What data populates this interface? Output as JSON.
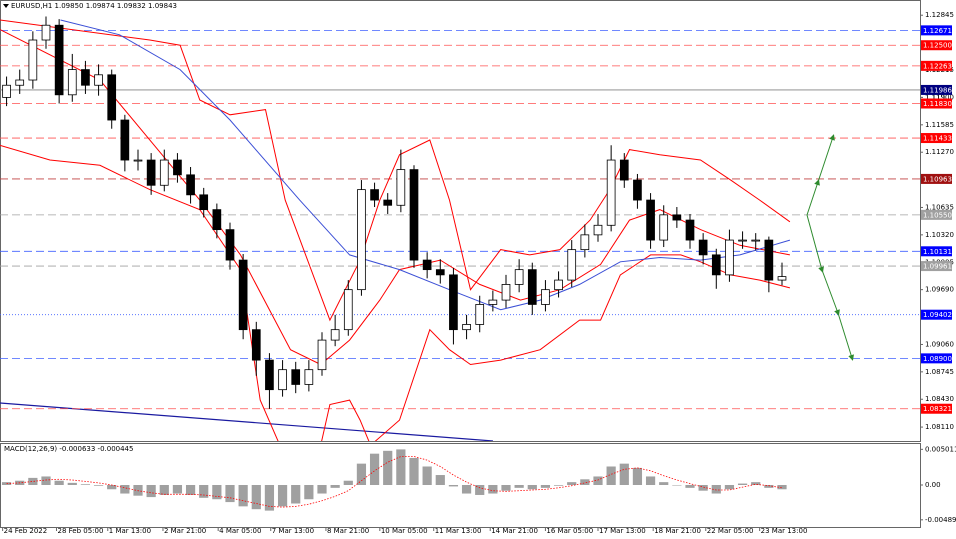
{
  "chart_data": [
    {
      "type": "candlestick",
      "title": "EURUSD,H1 1.09850 1.09874 1.09832 1.09843",
      "xlim": [
        0,
        70
      ],
      "ylim": [
        1.0795,
        1.1302
      ],
      "xticks": [
        {
          "value": 0.2,
          "label": "24 Feb 2022"
        },
        {
          "value": 4.3,
          "label": "28 Feb 05:00"
        },
        {
          "value": 8.2,
          "label": "1 Mar 13:00"
        },
        {
          "value": 12.4,
          "label": "2 Mar 21:00"
        },
        {
          "value": 16.6,
          "label": "4 Mar 05:00"
        },
        {
          "value": 20.6,
          "label": "7 Mar 13:00"
        },
        {
          "value": 24.8,
          "label": "8 Mar 21:00"
        },
        {
          "value": 28.9,
          "label": "10 Mar 05:00"
        },
        {
          "value": 33.0,
          "label": "11 Mar 13:00"
        },
        {
          "value": 37.3,
          "label": "14 Mar 21:00"
        },
        {
          "value": 41.5,
          "label": "16 Mar 05:00"
        },
        {
          "value": 45.5,
          "label": "17 Mar 13:00"
        },
        {
          "value": 49.7,
          "label": "18 Mar 21:00"
        },
        {
          "value": 53.7,
          "label": "22 Mar 05:00"
        },
        {
          "value": 57.8,
          "label": "23 Mar 13:00"
        }
      ],
      "yticks": [
        1.12845,
        1.12215,
        1.119,
        {
          "value": 1.119,
          "label": "1.11900"
        },
        1.11585,
        {
          "value": 1.1127,
          "label": "1.11270"
        },
        1.10635,
        {
          "value": 1.1032,
          "label": "1.10320"
        },
        1.10005,
        {
          "value": 1.0969,
          "label": "1.09690"
        },
        {
          "value": 1.0906,
          "label": "1.09060"
        },
        1.08745,
        {
          "value": 1.0843,
          "label": "1.08430"
        },
        {
          "value": 1.0811,
          "label": "1.08110"
        }
      ],
      "color_up": "#ffffff",
      "color_down": "#000000",
      "open": [
        1.119,
        1.1204,
        1.121,
        1.1256,
        1.1273,
        1.1193,
        1.1222,
        1.1204,
        1.1216,
        1.1164,
        1.1118,
        1.1118,
        1.1089,
        1.1118,
        1.1101,
        1.1078,
        1.1061,
        1.1038,
        1.1003,
        1.0923,
        1.0888,
        1.0854,
        1.0877,
        1.086,
        1.0877,
        1.0911,
        1.0923,
        1.0969,
        1.1084,
        1.1072,
        1.1066,
        1.1107,
        1.1003,
        1.0992,
        1.0986,
        1.0923,
        1.0929,
        1.0952,
        1.0957,
        1.0975,
        1.0992,
        1.0952,
        1.0969,
        1.098,
        1.1015,
        1.1032,
        1.1043,
        1.1118,
        1.1095,
        1.1072,
        1.1026,
        1.1055,
        1.1049,
        1.1026,
        1.1009,
        1.0986,
        1.1026,
        1.1026,
        1.1026,
        1.098
      ],
      "high": [
        1.1214,
        1.1222,
        1.1266,
        1.1283,
        1.128,
        1.124,
        1.1232,
        1.1228,
        1.1222,
        1.117,
        1.113,
        1.1126,
        1.113,
        1.1126,
        1.111,
        1.1086,
        1.1068,
        1.1046,
        1.101,
        1.0932,
        1.0896,
        1.0888,
        1.0886,
        1.0888,
        1.092,
        1.094,
        1.098,
        1.1095,
        1.1092,
        1.108,
        1.113,
        1.1112,
        1.1012,
        1.1004,
        1.0994,
        1.094,
        1.0962,
        1.0968,
        1.0986,
        1.1004,
        1.1,
        1.098,
        1.099,
        1.1026,
        1.1044,
        1.1056,
        1.1135,
        1.1126,
        1.1102,
        1.108,
        1.1066,
        1.1064,
        1.1056,
        1.1034,
        1.1016,
        1.1038,
        1.1036,
        1.1034,
        1.103,
        1.1
      ],
      "low": [
        1.118,
        1.1194,
        1.12,
        1.1246,
        1.1183,
        1.1185,
        1.1194,
        1.1192,
        1.1154,
        1.1105,
        1.1106,
        1.1078,
        1.1082,
        1.1092,
        1.1068,
        1.1052,
        1.1028,
        1.0992,
        1.0912,
        1.087,
        1.0832,
        1.0846,
        1.085,
        1.0852,
        1.087,
        1.0904,
        1.0916,
        1.0962,
        1.1064,
        1.1056,
        1.1058,
        1.0994,
        1.0982,
        1.0976,
        1.0906,
        1.0912,
        1.092,
        1.0944,
        1.0948,
        1.0966,
        1.094,
        1.0944,
        1.096,
        1.0972,
        1.1006,
        1.1024,
        1.1036,
        1.1086,
        1.1062,
        1.1016,
        1.1018,
        1.104,
        1.1016,
        1.0998,
        1.097,
        1.0978,
        1.1016,
        1.1014,
        1.0966,
        1.0974
      ],
      "close": [
        1.1204,
        1.121,
        1.1256,
        1.1273,
        1.1193,
        1.1222,
        1.1204,
        1.1216,
        1.1164,
        1.1118,
        1.1118,
        1.1089,
        1.1118,
        1.1101,
        1.1078,
        1.1061,
        1.1038,
        1.1003,
        1.0923,
        1.0888,
        1.0854,
        1.0877,
        1.086,
        1.0877,
        1.0911,
        1.0923,
        1.0969,
        1.1084,
        1.1072,
        1.1066,
        1.1107,
        1.1003,
        1.0992,
        1.0986,
        1.0923,
        1.0929,
        1.0952,
        1.0957,
        1.0975,
        1.0992,
        1.0952,
        1.0969,
        1.098,
        1.1015,
        1.1032,
        1.1043,
        1.1118,
        1.1095,
        1.1072,
        1.1026,
        1.1055,
        1.1049,
        1.1026,
        1.1009,
        1.0986,
        1.1026,
        1.1026,
        1.1026,
        1.098,
        1.0984
      ],
      "overlays": [
        {
          "color": "#ff0000",
          "x": [
            0,
            11.4,
            13.7,
            15.2,
            17.5,
            20.2,
            21.7,
            25.1,
            27.4,
            28.9,
            30.4,
            32.7,
            34.2,
            35.8,
            38.1,
            40.3,
            42.6,
            44.9,
            46.4,
            47.9,
            50.2,
            53.3,
            55.6,
            57.8,
            60.1
          ],
          "values": [
            1.1279,
            1.1256,
            1.125,
            1.1187,
            1.117,
            1.1176,
            1.1072,
            1.0934,
            1.1003,
            1.1072,
            1.1124,
            1.1141,
            1.1072,
            1.0969,
            1.1015,
            1.1009,
            1.1015,
            1.1049,
            1.1084,
            1.113,
            1.1124,
            1.1118,
            1.1095,
            1.1072,
            1.1047
          ]
        },
        {
          "color": "#ff0000",
          "x": [
            0,
            7.6,
            15.2,
            18.3,
            22.1,
            24.4,
            26.6,
            28.9,
            30.4,
            33.5,
            36.5,
            39.6,
            42.6,
            45.7,
            47.9,
            50.2,
            53.3,
            56.3,
            60.1
          ],
          "values": [
            1.1268,
            1.121,
            1.1072,
            1.1009,
            1.09,
            1.0883,
            1.0911,
            1.0957,
            1.0992,
            1.1003,
            1.0975,
            1.0957,
            1.0969,
            1.0998,
            1.1049,
            1.1061,
            1.1038,
            1.102,
            1.1009
          ]
        },
        {
          "color": "#ff0000",
          "x": [
            0,
            3.8,
            7.6,
            11.4,
            15.2,
            18.3,
            19.8,
            21.3,
            24.4,
            25.1,
            26.6,
            27.4,
            28.2,
            30.4,
            32.7,
            34.2,
            35.8,
            38.1,
            41.1,
            44.1,
            45.7,
            47.2,
            49.5,
            51.8,
            53.3,
            55.6,
            57.8,
            60.1
          ],
          "values": [
            1.1135,
            1.1118,
            1.1112,
            1.1084,
            1.1061,
            1.0992,
            1.0842,
            1.079,
            1.079,
            1.0837,
            1.0842,
            1.0819,
            1.079,
            1.0819,
            1.0923,
            1.09,
            1.0883,
            1.0888,
            1.09,
            1.0934,
            1.0934,
            1.0986,
            1.1009,
            1.1009,
            1.1001,
            1.0986,
            1.098,
            1.0971
          ]
        },
        {
          "color": "#3b4fd6",
          "x": [
            4.6,
            9.1,
            13.7,
            17.5,
            22.8,
            26.6,
            30.4,
            34.2,
            38.1,
            41.1,
            44.1,
            47.2,
            50.2,
            53.3,
            56.3,
            60.1
          ],
          "values": [
            1.1279,
            1.1262,
            1.1222,
            1.1164,
            1.1072,
            1.1009,
            1.0992,
            1.0969,
            1.0946,
            1.0957,
            1.0975,
            1.1001,
            1.1006,
            1.1003,
            1.1009,
            1.1026
          ]
        }
      ],
      "levels": [
        {
          "value": 1.12671,
          "color": "#0000ff",
          "line_color": "#4060ff",
          "dash": "8,4"
        },
        {
          "value": {
            "value": 1.125,
            "label": "1.12500"
          },
          "color": "#ff0000",
          "line_color": "#ff5050",
          "dash": "8,4"
        },
        {
          "value": 1.12263,
          "color": "#ff0000",
          "line_color": "#ff5050",
          "dash": "8,4"
        },
        {
          "value": 1.11986,
          "color": "#000080",
          "line_color": "#808080",
          "dash": "none"
        },
        {
          "value": {
            "value": 1.1183,
            "label": "1.11830"
          },
          "color": "#ff0000",
          "line_color": "#ff5050",
          "dash": "8,4"
        },
        {
          "value": 1.11433,
          "color": "#ff0000",
          "line_color": "#ff5050",
          "dash": "8,4"
        },
        {
          "value": 1.10963,
          "color": "#a01010",
          "line_color": "#c04040",
          "dash": "8,4"
        },
        {
          "value": {
            "value": 1.1055,
            "label": "1.10550"
          },
          "color": "#a0a0a0",
          "line_color": "#a0a0a0",
          "dash": "8,4"
        },
        {
          "value": 1.10131,
          "color": "#0000ff",
          "line_color": "#4060ff",
          "dash": "8,4"
        },
        {
          "value": 1.09961,
          "color": "#a0a0a0",
          "line_color": "#a0a0a0",
          "dash": "8,4"
        },
        {
          "value": 1.09402,
          "color": "#0000ff",
          "line_color": "#4060ff",
          "dash": "1,2"
        },
        {
          "value": {
            "value": 1.089,
            "label": "1.08900"
          },
          "color": "#0000ff",
          "line_color": "#4060ff",
          "dash": "8,4"
        },
        {
          "value": 1.08321,
          "color": "#ff0000",
          "line_color": "#ff5050",
          "dash": "8,4"
        }
      ]
    },
    {
      "type": "macd",
      "title": "MACD(12,26,9) -0.000633 -0.000445",
      "xlim": [
        0,
        70
      ],
      "ylim": [
        -0.0059,
        0.0059
      ],
      "yticks": [
        0.005011,
        {
          "value": 0,
          "label": "0.00"
        },
        -0.004891
      ],
      "color": "#a0a0a0",
      "values": [
        0.0004,
        0.0006,
        0.001,
        0.0012,
        0.0006,
        0.0003,
        0.0001,
        -0.0001,
        -0.0006,
        -0.0012,
        -0.0015,
        -0.0017,
        -0.0014,
        -0.0012,
        -0.0014,
        -0.0018,
        -0.002,
        -0.0024,
        -0.003,
        -0.0034,
        -0.0036,
        -0.003,
        -0.0026,
        -0.002,
        -0.0012,
        -0.0004,
        0.0006,
        0.003,
        0.0044,
        0.0048,
        0.005,
        0.0038,
        0.0026,
        0.0014,
        -0.0002,
        -0.0012,
        -0.0014,
        -0.0012,
        -0.0008,
        -0.0004,
        -0.0006,
        -0.0004,
        -0.0001,
        0.0004,
        0.0008,
        0.0012,
        0.0026,
        0.003,
        0.0024,
        0.0012,
        0.0004,
        0,
        -0.0004,
        -0.0008,
        -0.0012,
        -0.0006,
        0.0002,
        0.0004,
        -0.0004,
        -0.0006
      ],
      "signal": {
        "color": "#ff0000",
        "values": [
          0.0002,
          0.0003,
          0.0005,
          0.0007,
          0.0008,
          0.0007,
          0.0005,
          0.0003,
          0,
          -0.0004,
          -0.0008,
          -0.0011,
          -0.0013,
          -0.0013,
          -0.0013,
          -0.0014,
          -0.0016,
          -0.0018,
          -0.0022,
          -0.0026,
          -0.003,
          -0.0031,
          -0.003,
          -0.0027,
          -0.0022,
          -0.0016,
          -0.0008,
          0.0006,
          0.002,
          0.0032,
          0.004,
          0.004,
          0.0035,
          0.0026,
          0.0014,
          0.0004,
          -0.0004,
          -0.0008,
          -0.0009,
          -0.0008,
          -0.0007,
          -0.0006,
          -0.0004,
          -0.0001,
          0.0003,
          0.0007,
          0.0015,
          0.0022,
          0.0024,
          0.002,
          0.0013,
          0.0007,
          0.0002,
          -0.0003,
          -0.0007,
          -0.0007,
          -0.0003,
          0.0001,
          -0.0001,
          -0.0004
        ]
      }
    }
  ]
}
